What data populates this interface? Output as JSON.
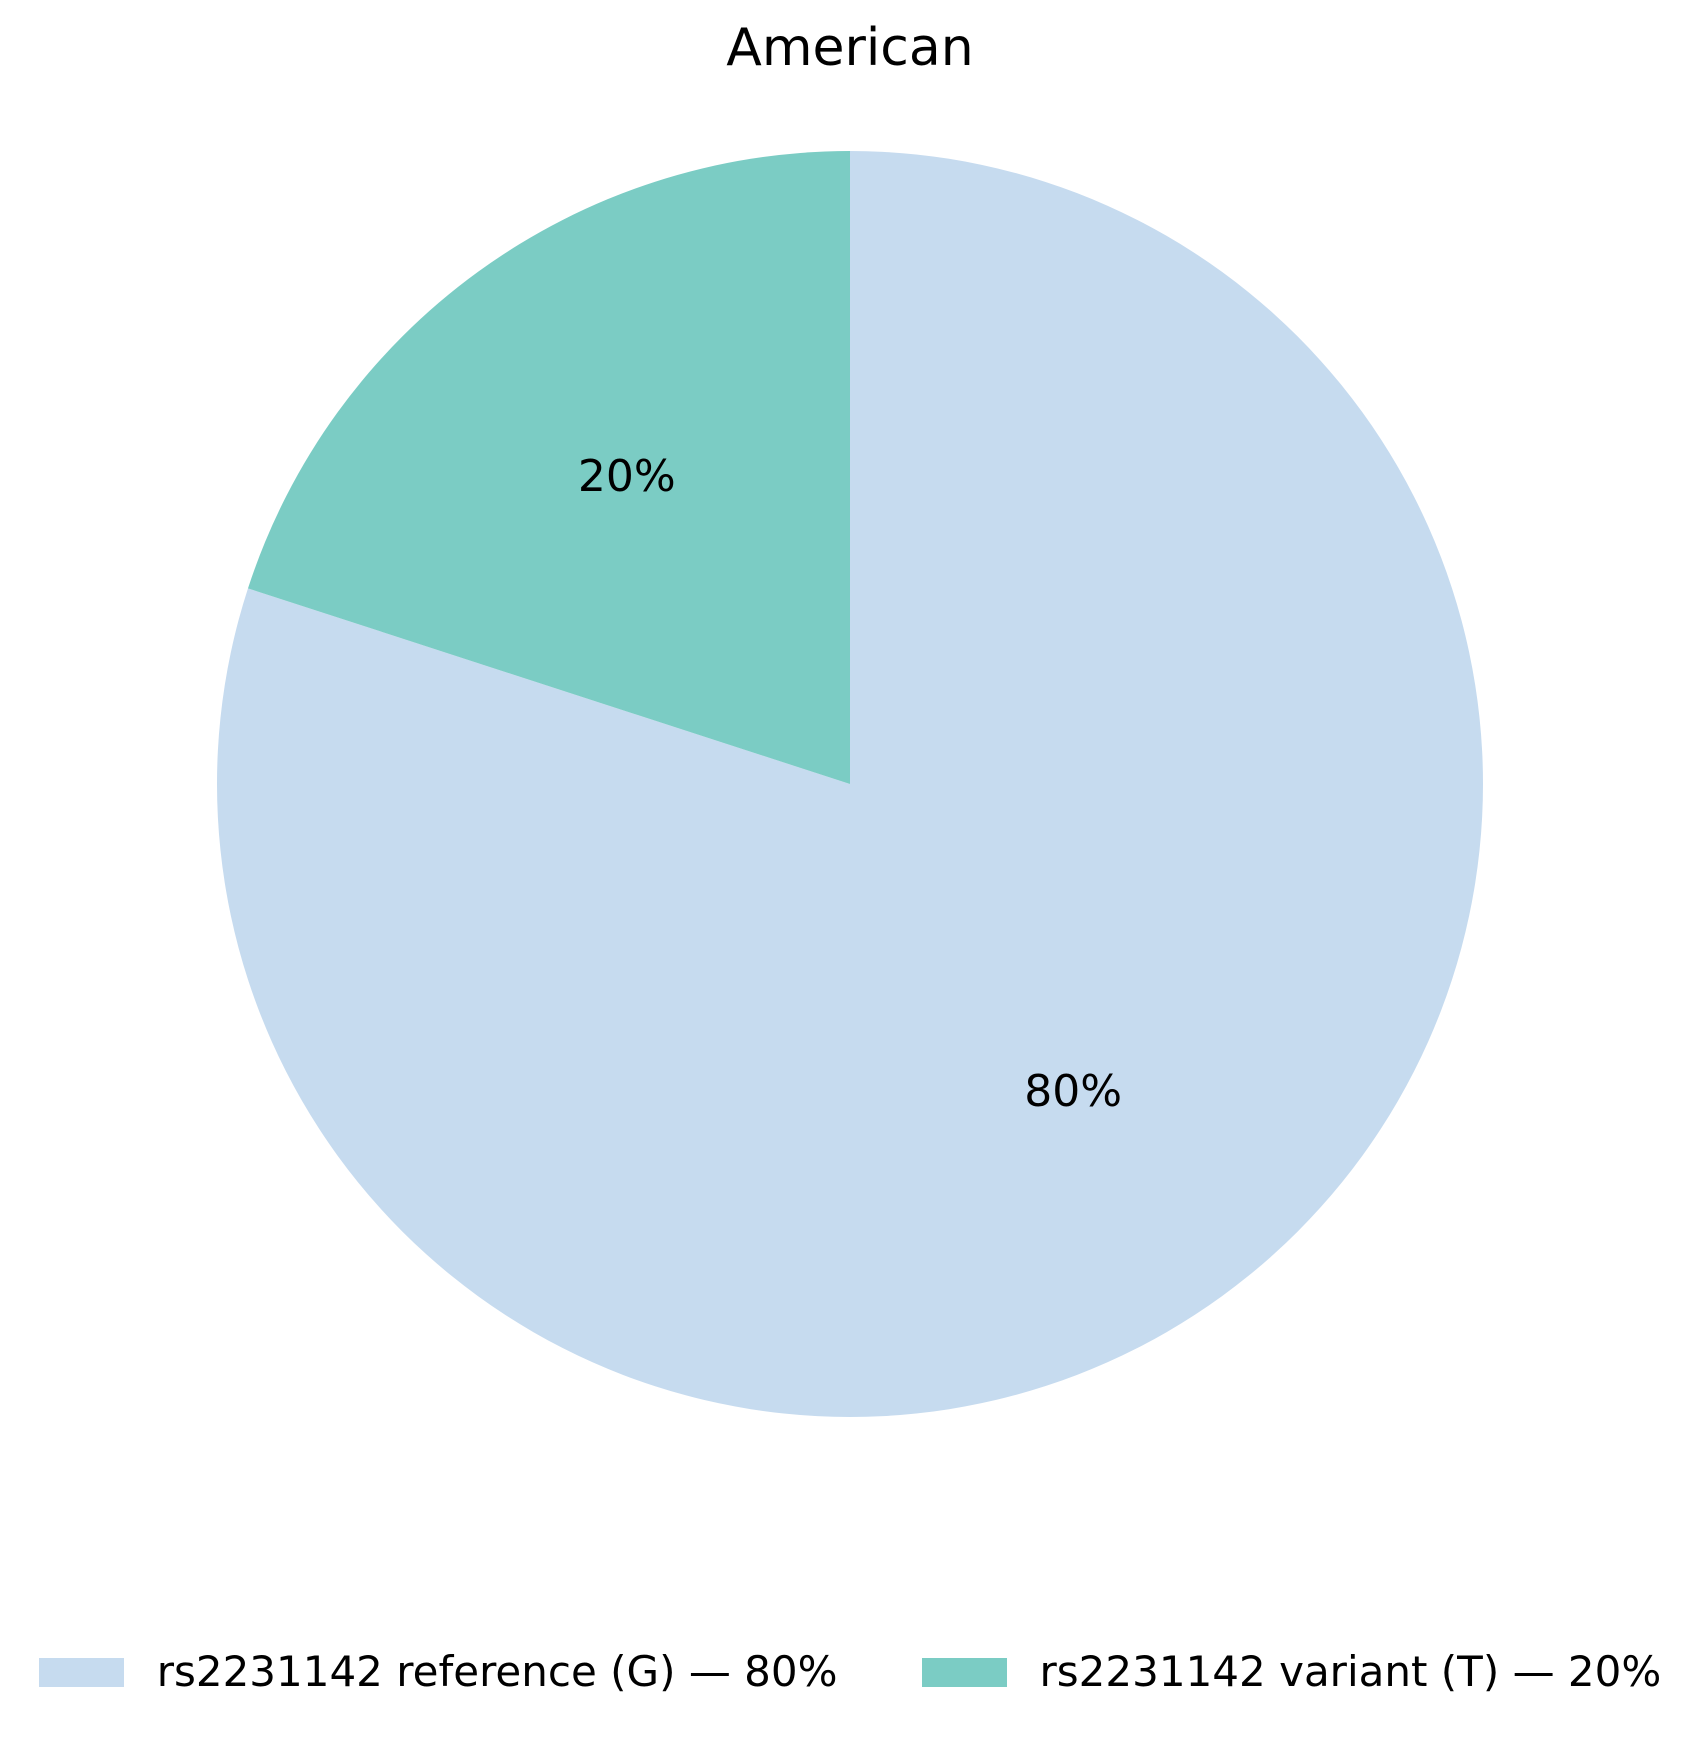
{
  "chart_data": {
    "type": "pie",
    "title": "American",
    "slices": [
      {
        "category": "rs2231142 reference (G)",
        "label": "rs2231142 reference (G) — 80%",
        "value": 80,
        "pct_label": "80%",
        "color": "#c6dbef"
      },
      {
        "category": "rs2231142 variant (T)",
        "label": "rs2231142 variant (T) — 20%",
        "value": 20,
        "pct_label": "20%",
        "color": "#7bccc4"
      }
    ],
    "start_angle_deg": 90,
    "direction": "clockwise",
    "label_distance": 0.6,
    "legend_position": "lower center",
    "text_color": "#000000",
    "background_color": "#ffffff"
  }
}
